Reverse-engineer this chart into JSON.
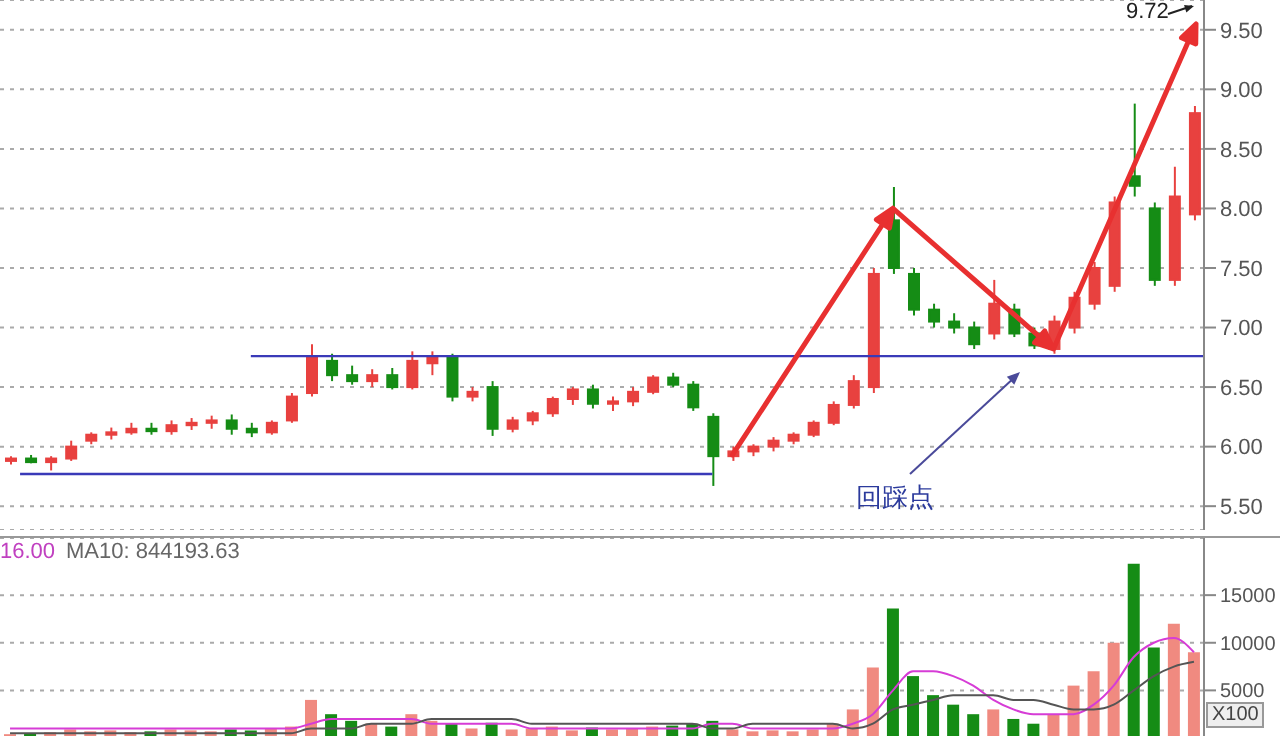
{
  "chart_data": [
    {
      "type": "candlestick",
      "categories": [
        null,
        null,
        null,
        null,
        null,
        null,
        null,
        null,
        null,
        null,
        null,
        null,
        null,
        null,
        null,
        null,
        null,
        null,
        null,
        null,
        null,
        null,
        null,
        null,
        null,
        null,
        null,
        null,
        null,
        null,
        null,
        null,
        null,
        null,
        null,
        null,
        null,
        null,
        null,
        null,
        null,
        null,
        null,
        null,
        null,
        null,
        null,
        null,
        null,
        null,
        null,
        null,
        null,
        null,
        null,
        null,
        null,
        null,
        null,
        null
      ],
      "ohlc": [
        [
          5.88,
          5.92,
          5.85,
          5.9
        ],
        [
          5.9,
          5.93,
          5.86,
          5.87
        ],
        [
          5.87,
          5.92,
          5.8,
          5.9
        ],
        [
          5.9,
          6.05,
          5.88,
          6.0
        ],
        [
          6.05,
          6.12,
          6.02,
          6.1
        ],
        [
          6.1,
          6.16,
          6.06,
          6.12
        ],
        [
          6.12,
          6.2,
          6.1,
          6.15
        ],
        [
          6.15,
          6.2,
          6.1,
          6.13
        ],
        [
          6.13,
          6.22,
          6.1,
          6.18
        ],
        [
          6.18,
          6.24,
          6.14,
          6.2
        ],
        [
          6.2,
          6.26,
          6.15,
          6.22
        ],
        [
          6.22,
          6.27,
          6.1,
          6.15
        ],
        [
          6.15,
          6.2,
          6.08,
          6.12
        ],
        [
          6.12,
          6.22,
          6.1,
          6.2
        ],
        [
          6.22,
          6.45,
          6.2,
          6.42
        ],
        [
          6.45,
          6.86,
          6.42,
          6.75
        ],
        [
          6.72,
          6.78,
          6.55,
          6.6
        ],
        [
          6.6,
          6.68,
          6.52,
          6.55
        ],
        [
          6.55,
          6.65,
          6.5,
          6.6
        ],
        [
          6.6,
          6.66,
          6.48,
          6.5
        ],
        [
          6.5,
          6.8,
          6.48,
          6.72
        ],
        [
          6.7,
          6.8,
          6.6,
          6.75
        ],
        [
          6.75,
          6.78,
          6.38,
          6.42
        ],
        [
          6.42,
          6.5,
          6.38,
          6.46
        ],
        [
          6.5,
          6.55,
          6.09,
          6.15
        ],
        [
          6.15,
          6.25,
          6.12,
          6.22
        ],
        [
          6.22,
          6.3,
          6.18,
          6.28
        ],
        [
          6.28,
          6.42,
          6.25,
          6.4
        ],
        [
          6.4,
          6.5,
          6.35,
          6.48
        ],
        [
          6.48,
          6.52,
          6.32,
          6.36
        ],
        [
          6.36,
          6.42,
          6.3,
          6.38
        ],
        [
          6.38,
          6.5,
          6.34,
          6.46
        ],
        [
          6.46,
          6.6,
          6.44,
          6.58
        ],
        [
          6.58,
          6.62,
          6.5,
          6.52
        ],
        [
          6.52,
          6.55,
          6.3,
          6.33
        ],
        [
          6.25,
          6.28,
          5.67,
          5.92
        ],
        [
          5.92,
          6.0,
          5.88,
          5.96
        ],
        [
          5.96,
          6.02,
          5.92,
          6.0
        ],
        [
          6.0,
          6.08,
          5.96,
          6.05
        ],
        [
          6.05,
          6.12,
          6.02,
          6.1
        ],
        [
          6.1,
          6.22,
          6.08,
          6.2
        ],
        [
          6.2,
          6.38,
          6.18,
          6.35
        ],
        [
          6.35,
          6.6,
          6.32,
          6.55
        ],
        [
          6.5,
          7.5,
          6.45,
          7.45
        ],
        [
          7.9,
          8.18,
          7.45,
          7.5
        ],
        [
          7.45,
          7.5,
          7.1,
          7.15
        ],
        [
          7.15,
          7.2,
          7.0,
          7.05
        ],
        [
          7.05,
          7.12,
          6.95,
          7.0
        ],
        [
          7.0,
          7.05,
          6.82,
          6.86
        ],
        [
          6.95,
          7.4,
          6.9,
          7.2
        ],
        [
          7.15,
          7.2,
          6.92,
          6.95
        ],
        [
          6.95,
          7.0,
          6.82,
          6.85
        ],
        [
          6.82,
          7.1,
          6.78,
          7.05
        ],
        [
          7.0,
          7.3,
          6.95,
          7.25
        ],
        [
          7.2,
          7.55,
          7.15,
          7.5
        ],
        [
          7.35,
          8.1,
          7.3,
          8.05
        ],
        [
          8.27,
          8.88,
          8.1,
          8.19
        ],
        [
          8.0,
          8.05,
          7.35,
          7.4
        ],
        [
          7.4,
          8.35,
          7.35,
          8.1
        ],
        [
          7.95,
          8.86,
          7.9,
          8.8
        ]
      ],
      "colors": [
        "#e8413f",
        "#158c15",
        "#e8413f",
        "#e8413f",
        "#e8413f",
        "#e8413f",
        "#e8413f",
        "#158c15",
        "#e8413f",
        "#e8413f",
        "#e8413f",
        "#158c15",
        "#158c15",
        "#e8413f",
        "#e8413f",
        "#e8413f",
        "#158c15",
        "#158c15",
        "#e8413f",
        "#158c15",
        "#e8413f",
        "#e8413f",
        "#158c15",
        "#e8413f",
        "#158c15",
        "#e8413f",
        "#e8413f",
        "#e8413f",
        "#e8413f",
        "#158c15",
        "#e8413f",
        "#e8413f",
        "#e8413f",
        "#158c15",
        "#158c15",
        "#158c15",
        "#e8413f",
        "#e8413f",
        "#e8413f",
        "#e8413f",
        "#e8413f",
        "#e8413f",
        "#e8413f",
        "#e8413f",
        "#158c15",
        "#158c15",
        "#158c15",
        "#158c15",
        "#158c15",
        "#e8413f",
        "#158c15",
        "#158c15",
        "#e8413f",
        "#e8413f",
        "#e8413f",
        "#e8413f",
        "#158c15",
        "#158c15",
        "#e8413f",
        "#e8413f"
      ],
      "ylim": [
        5.3,
        9.75
      ],
      "yticks": [
        {
          "value": 5.5,
          "label": "5.50"
        },
        {
          "value": 6,
          "label": "6.00"
        },
        {
          "value": 6.5,
          "label": "6.50"
        },
        {
          "value": 7,
          "label": "7.00"
        },
        {
          "value": 7.5,
          "label": "7.50"
        },
        {
          "value": 8,
          "label": "8.00"
        },
        {
          "value": 8.5,
          "label": "8.50"
        },
        {
          "value": 9,
          "label": "9.00"
        },
        {
          "value": 9.5,
          "label": "9.50"
        }
      ],
      "grid": "y",
      "tick_labels": "y",
      "ref_lines": [
        {
          "axis": "y",
          "value": 6.76,
          "color": "#3a3ab8"
        },
        {
          "axis": "y",
          "value": 5.77,
          "color": "#3a3ab8"
        }
      ],
      "annotations": [
        "回踩点",
        "9.72"
      ]
    },
    {
      "type": "bar",
      "categories": [
        null,
        null,
        null,
        null,
        null,
        null,
        null,
        null,
        null,
        null,
        null,
        null,
        null,
        null,
        null,
        null,
        null,
        null,
        null,
        null,
        null,
        null,
        null,
        null,
        null,
        null,
        null,
        null,
        null,
        null,
        null,
        null,
        null,
        null,
        null,
        null,
        null,
        null,
        null,
        null,
        null,
        null,
        null,
        null,
        null,
        null,
        null,
        null,
        null,
        null,
        null,
        null,
        null,
        null,
        null,
        null,
        null,
        null,
        null,
        null
      ],
      "series": [
        {
          "type": "bar",
          "values": [
            400,
            500,
            600,
            900,
            700,
            800,
            600,
            700,
            900,
            800,
            700,
            900,
            800,
            1000,
            1200,
            4000,
            2500,
            1800,
            1500,
            1200,
            2500,
            1800,
            1500,
            1000,
            1600,
            900,
            1000,
            1200,
            800,
            1100,
            900,
            1000,
            1200,
            1300,
            1500,
            1800,
            900,
            700,
            800,
            700,
            900,
            1500,
            3000,
            7400,
            13600,
            6500,
            4500,
            3500,
            2500,
            3000,
            2000,
            1500,
            2500,
            5500,
            7000,
            10000,
            18300,
            9500,
            12000,
            9000
          ],
          "colors": [
            "#f08a80",
            "#158c15",
            "#f08a80",
            "#f08a80",
            "#f08a80",
            "#f08a80",
            "#f08a80",
            "#158c15",
            "#f08a80",
            "#f08a80",
            "#f08a80",
            "#158c15",
            "#158c15",
            "#f08a80",
            "#f08a80",
            "#f08a80",
            "#158c15",
            "#158c15",
            "#f08a80",
            "#158c15",
            "#f08a80",
            "#f08a80",
            "#158c15",
            "#f08a80",
            "#158c15",
            "#f08a80",
            "#f08a80",
            "#f08a80",
            "#f08a80",
            "#158c15",
            "#f08a80",
            "#f08a80",
            "#f08a80",
            "#158c15",
            "#158c15",
            "#158c15",
            "#f08a80",
            "#f08a80",
            "#f08a80",
            "#f08a80",
            "#f08a80",
            "#f08a80",
            "#f08a80",
            "#f08a80",
            "#158c15",
            "#158c15",
            "#158c15",
            "#158c15",
            "#158c15",
            "#f08a80",
            "#158c15",
            "#158c15",
            "#f08a80",
            "#f08a80",
            "#f08a80",
            "#f08a80",
            "#158c15",
            "#158c15",
            "#f08a80",
            "#f08a80"
          ]
        },
        {
          "type": "line",
          "color": "#d63cd6",
          "values": [
            1000,
            1000,
            1000,
            1000,
            1000,
            1000,
            1000,
            1000,
            1000,
            1000,
            1000,
            1000,
            1000,
            1000,
            1000,
            1500,
            2000,
            2000,
            2000,
            2000,
            2000,
            1500,
            1500,
            1500,
            1500,
            1500,
            1000,
            1000,
            1000,
            1000,
            1000,
            1000,
            1000,
            1000,
            1000,
            1500,
            1500,
            1000,
            1000,
            1000,
            1000,
            1000,
            1500,
            2500,
            5000,
            7000,
            7000,
            6500,
            5500,
            4000,
            3000,
            2500,
            2500,
            2500,
            3500,
            5500,
            8500,
            10000,
            10500,
            9000
          ]
        },
        {
          "type": "line",
          "color": "#555555",
          "values": [
            500,
            500,
            500,
            500,
            500,
            500,
            500,
            500,
            500,
            500,
            500,
            500,
            500,
            500,
            500,
            1000,
            1000,
            1000,
            1500,
            1500,
            1500,
            2000,
            2000,
            2000,
            2000,
            2000,
            1500,
            1500,
            1500,
            1500,
            1500,
            1500,
            1500,
            1500,
            1500,
            1000,
            1000,
            1500,
            1500,
            1500,
            1500,
            1500,
            1000,
            1500,
            3000,
            3500,
            4000,
            4500,
            4500,
            4500,
            4000,
            4000,
            3500,
            3000,
            3000,
            3500,
            5000,
            6500,
            7500,
            8000
          ]
        }
      ],
      "ylim": [
        0,
        21000
      ],
      "yticks": [
        5000,
        10000,
        15000
      ],
      "grid": "y",
      "tick_labels": "y",
      "annotations": [
        "16.00",
        "MA10: 844193.63",
        "X100"
      ]
    }
  ]
}
